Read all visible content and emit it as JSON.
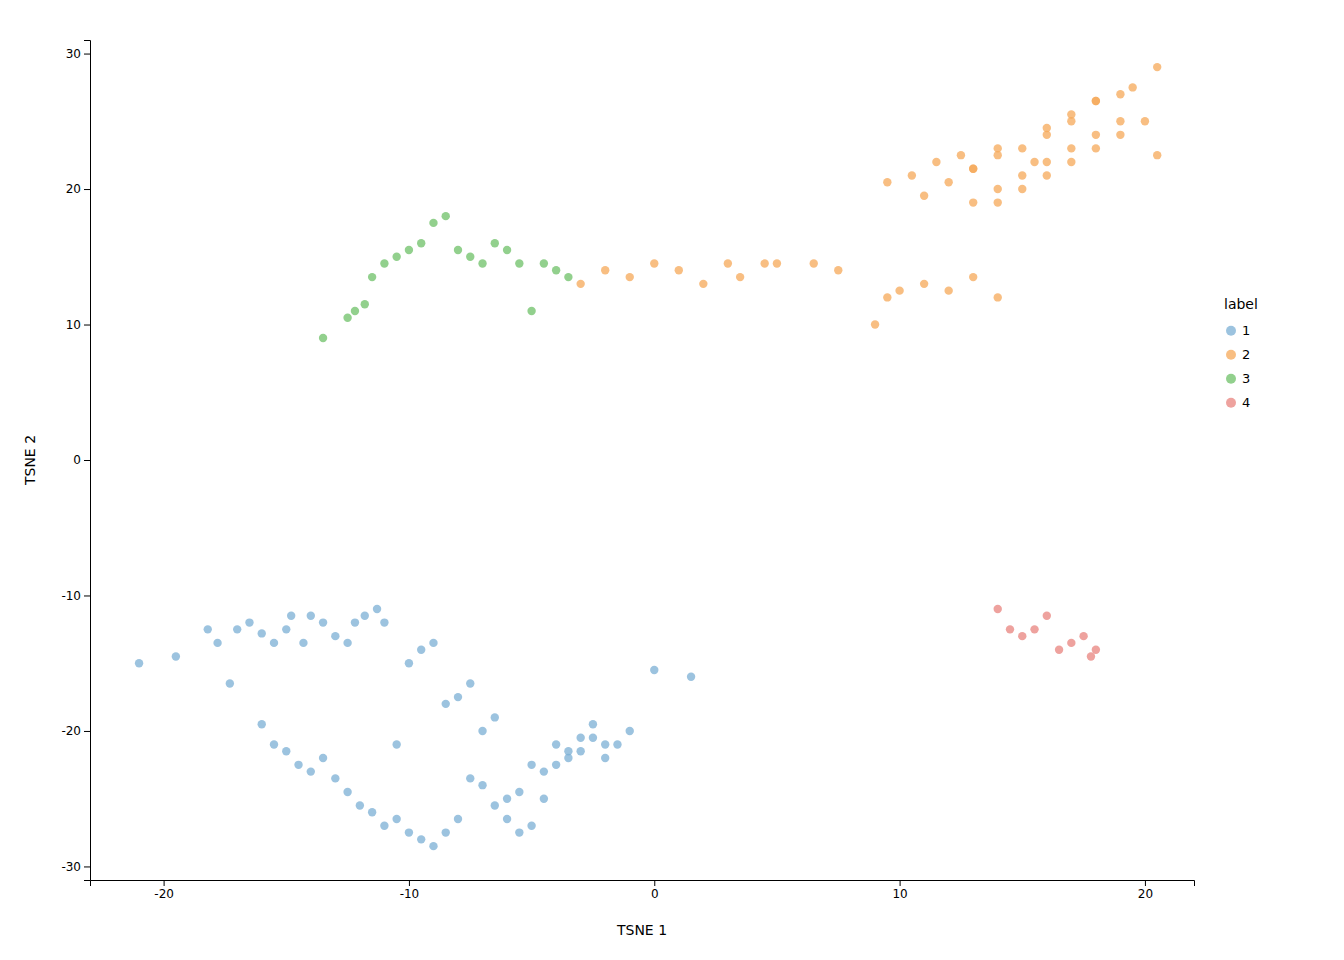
{
  "chart_data": {
    "type": "scatter",
    "xlabel": "TSNE 1",
    "ylabel": "TSNE 2",
    "legend_title": "label",
    "legend": "right",
    "grid": false,
    "marker": "circle",
    "xlim": [
      -23,
      22
    ],
    "ylim": [
      -31,
      31
    ],
    "xticks": [
      -20,
      -10,
      0,
      10,
      20
    ],
    "yticks": [
      -30,
      -20,
      -10,
      0,
      10,
      20,
      30
    ],
    "series": [
      {
        "name": "1",
        "color": "#7BAFD4",
        "x": [
          -21.0,
          -19.5,
          -18.2,
          -17.8,
          -17.3,
          -17.0,
          -16.5,
          -16.0,
          -15.5,
          -15.0,
          -14.8,
          -14.3,
          -14.0,
          -13.5,
          -13.0,
          -12.5,
          -12.2,
          -11.8,
          -11.3,
          -11.0,
          -10.5,
          -10.0,
          -9.5,
          -9.0,
          -8.5,
          -8.0,
          -7.5,
          -7.0,
          -6.5,
          -6.0,
          -5.5,
          -5.0,
          -4.5,
          -4.0,
          -3.5,
          -3.0,
          -2.5,
          -2.0,
          -1.5,
          -1.0,
          0.0,
          1.5,
          -16.0,
          -15.5,
          -15.0,
          -14.5,
          -14.0,
          -13.5,
          -13.0,
          -12.5,
          -12.0,
          -11.5,
          -11.0,
          -10.5,
          -10.0,
          -9.5,
          -9.0,
          -8.5,
          -8.0,
          -7.5,
          -7.0,
          -6.5,
          -6.0,
          -5.5,
          -5.0,
          -4.5,
          -4.0,
          -3.5,
          -3.0,
          -2.5,
          -2.0
        ],
        "values": [
          -15.0,
          -14.5,
          -12.5,
          -13.5,
          -16.5,
          -12.5,
          -12.0,
          -12.8,
          -13.5,
          -12.5,
          -11.5,
          -13.5,
          -11.5,
          -12.0,
          -13.0,
          -13.5,
          -12.0,
          -11.5,
          -11.0,
          -12.0,
          -21.0,
          -15.0,
          -14.0,
          -13.5,
          -18.0,
          -17.5,
          -16.5,
          -20.0,
          -19.0,
          -25.0,
          -24.5,
          -22.5,
          -23.0,
          -21.0,
          -22.0,
          -21.5,
          -20.5,
          -22.0,
          -21.0,
          -20.0,
          -15.5,
          -16.0,
          -19.5,
          -21.0,
          -21.5,
          -22.5,
          -23.0,
          -22.0,
          -23.5,
          -24.5,
          -25.5,
          -26.0,
          -27.0,
          -26.5,
          -27.5,
          -28.0,
          -28.5,
          -27.5,
          -26.5,
          -23.5,
          -24.0,
          -25.5,
          -26.5,
          -27.5,
          -27.0,
          -25.0,
          -22.5,
          -21.5,
          -20.5,
          -19.5,
          -21.0
        ]
      },
      {
        "name": "2",
        "color": "#F5A858",
        "x": [
          -3.0,
          -2.0,
          -1.0,
          0.0,
          1.0,
          2.0,
          3.0,
          3.5,
          4.5,
          5.0,
          6.5,
          7.5,
          9.0,
          9.5,
          10.0,
          11.0,
          12.0,
          13.0,
          14.0,
          9.5,
          10.5,
          11.5,
          12.5,
          13.0,
          14.0,
          15.5,
          16.0,
          17.0,
          18.0,
          11.0,
          12.0,
          13.0,
          14.0,
          15.0,
          16.0,
          17.0,
          18.0,
          19.0,
          13.0,
          14.0,
          15.0,
          16.0,
          17.0,
          18.0,
          19.0,
          19.5,
          20.5,
          14.0,
          15.0,
          16.0,
          17.0,
          18.0,
          19.0,
          20.0,
          20.5
        ],
        "values": [
          13.0,
          14.0,
          13.5,
          14.5,
          14.0,
          13.0,
          14.5,
          13.5,
          14.5,
          14.5,
          14.5,
          14.0,
          10.0,
          12.0,
          12.5,
          13.0,
          12.5,
          13.5,
          12.0,
          20.5,
          21.0,
          22.0,
          22.5,
          21.5,
          23.0,
          22.0,
          24.0,
          25.0,
          26.5,
          19.5,
          20.5,
          21.5,
          22.5,
          23.0,
          24.5,
          25.5,
          26.5,
          27.0,
          19.0,
          20.0,
          21.0,
          22.0,
          23.0,
          24.0,
          25.0,
          27.5,
          29.0,
          19.0,
          20.0,
          21.0,
          22.0,
          23.0,
          24.0,
          25.0,
          22.5
        ]
      },
      {
        "name": "3",
        "color": "#6DC067",
        "x": [
          -13.5,
          -12.5,
          -12.2,
          -11.8,
          -11.5,
          -11.0,
          -10.5,
          -10.0,
          -9.5,
          -9.0,
          -8.5,
          -8.0,
          -7.5,
          -7.0,
          -6.5,
          -6.0,
          -5.5,
          -5.0,
          -4.5,
          -4.0,
          -3.5
        ],
        "values": [
          9.0,
          10.5,
          11.0,
          11.5,
          13.5,
          14.5,
          15.0,
          15.5,
          16.0,
          17.5,
          18.0,
          15.5,
          15.0,
          14.5,
          16.0,
          15.5,
          14.5,
          11.0,
          14.5,
          14.0,
          13.5
        ]
      },
      {
        "name": "4",
        "color": "#E8837E",
        "x": [
          14.0,
          14.5,
          15.0,
          15.5,
          16.0,
          16.5,
          17.0,
          17.5,
          17.8,
          18.0
        ],
        "values": [
          -11.0,
          -12.5,
          -13.0,
          -12.5,
          -11.5,
          -14.0,
          -13.5,
          -13.0,
          -14.5,
          -14.0
        ]
      }
    ]
  }
}
